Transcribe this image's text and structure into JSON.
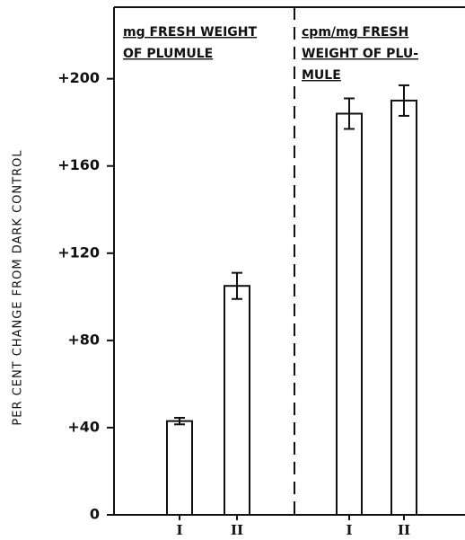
{
  "chart_data": {
    "type": "bar",
    "ylabel": "PER CENT CHANGE FROM DARK CONTROL",
    "ylim": [
      0,
      232
    ],
    "yticks": [
      0,
      {
        "value": 40,
        "label": "+40"
      },
      {
        "value": 80,
        "label": "+80"
      },
      {
        "value": 120,
        "label": "+120"
      },
      {
        "value": 160,
        "label": "+160"
      },
      {
        "value": 200,
        "label": "+200"
      }
    ],
    "color": "#ffffff",
    "panels": [
      {
        "title_lines": [
          "mg FRESH WEIGHT",
          "OF PLUMULE"
        ],
        "categories": [
          "I",
          "II"
        ],
        "values": [
          43,
          105
        ],
        "errors": [
          1.5,
          6
        ]
      },
      {
        "title_lines": [
          "cpm/mg FRESH",
          "WEIGHT OF PLU-",
          "MULE"
        ],
        "categories": [
          "I",
          "II"
        ],
        "values": [
          184,
          190
        ],
        "errors": [
          7,
          7
        ]
      }
    ]
  }
}
